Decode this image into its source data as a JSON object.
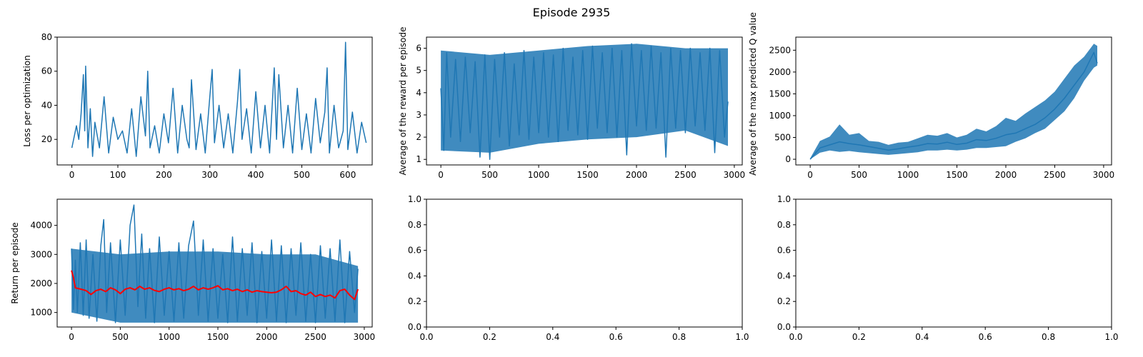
{
  "figure": {
    "title": "Episode 2935"
  },
  "colors": {
    "series": "#1f77b4",
    "smooth": "#ff0000",
    "axis": "#000000"
  },
  "chart_data": [
    {
      "id": "loss",
      "type": "line",
      "title": "",
      "xlabel": "",
      "ylabel": "Loss per optimization",
      "xlim": [
        -32,
        653
      ],
      "ylim": [
        5,
        80
      ],
      "xticks": [
        0,
        100,
        200,
        300,
        400,
        500,
        600
      ],
      "yticks": [
        20,
        40,
        60,
        80
      ],
      "series": [
        {
          "color": "#1f77b4",
          "x": [
            0,
            10,
            15,
            20,
            25,
            28,
            30,
            35,
            40,
            45,
            50,
            60,
            70,
            80,
            90,
            100,
            110,
            120,
            130,
            140,
            150,
            160,
            165,
            170,
            180,
            190,
            200,
            210,
            220,
            230,
            240,
            250,
            255,
            260,
            270,
            280,
            290,
            300,
            305,
            310,
            320,
            330,
            340,
            350,
            360,
            365,
            370,
            380,
            390,
            400,
            410,
            420,
            430,
            440,
            445,
            450,
            460,
            470,
            480,
            490,
            500,
            510,
            520,
            530,
            540,
            550,
            555,
            560,
            570,
            580,
            590,
            595,
            600,
            610,
            620,
            630,
            640
          ],
          "y": [
            15,
            28,
            20,
            35,
            58,
            25,
            63,
            15,
            38,
            10,
            30,
            15,
            45,
            12,
            33,
            20,
            25,
            12,
            38,
            10,
            45,
            22,
            60,
            15,
            28,
            12,
            35,
            18,
            50,
            12,
            40,
            20,
            15,
            55,
            14,
            35,
            12,
            45,
            61,
            18,
            40,
            15,
            35,
            12,
            42,
            61,
            20,
            38,
            12,
            48,
            15,
            40,
            12,
            62,
            20,
            58,
            15,
            40,
            12,
            50,
            14,
            35,
            12,
            44,
            18,
            36,
            62,
            12,
            40,
            15,
            25,
            77,
            14,
            36,
            12,
            30,
            18
          ]
        }
      ]
    },
    {
      "id": "reward",
      "type": "line",
      "title": "",
      "xlabel": "",
      "ylabel": "Average of the reward per episode",
      "xlim": [
        -147,
        3081
      ],
      "ylim": [
        0.75,
        6.5
      ],
      "xticks": [
        0,
        500,
        1000,
        1500,
        2000,
        2500,
        3000
      ],
      "yticks": [
        1,
        2,
        3,
        4,
        5,
        6
      ],
      "band": {
        "color": "#1f77b4",
        "x": [
          0,
          500,
          1000,
          1500,
          2000,
          2500,
          2935
        ],
        "upper": [
          5.9,
          5.7,
          5.9,
          6.1,
          6.2,
          6.0,
          6.0
        ],
        "lower": [
          1.4,
          1.3,
          1.7,
          1.9,
          2.0,
          2.3,
          1.6
        ]
      },
      "series": [
        {
          "color": "#1f77b4",
          "x": [
            0,
            30,
            60,
            100,
            150,
            200,
            250,
            300,
            350,
            400,
            450,
            500,
            550,
            600,
            650,
            700,
            750,
            800,
            850,
            900,
            950,
            1000,
            1050,
            1100,
            1150,
            1200,
            1250,
            1300,
            1350,
            1400,
            1450,
            1500,
            1550,
            1600,
            1650,
            1700,
            1750,
            1800,
            1850,
            1900,
            1950,
            2000,
            2050,
            2100,
            2150,
            2200,
            2250,
            2300,
            2350,
            2400,
            2450,
            2500,
            2550,
            2600,
            2650,
            2700,
            2750,
            2800,
            2850,
            2900,
            2935
          ],
          "y": [
            4.2,
            1.4,
            5.8,
            2.0,
            5.5,
            1.8,
            5.6,
            2.2,
            5.4,
            1.1,
            5.7,
            1.0,
            5.5,
            2.0,
            5.8,
            1.6,
            5.3,
            2.1,
            5.9,
            1.9,
            5.6,
            2.2,
            5.8,
            2.0,
            5.7,
            1.8,
            6.0,
            2.3,
            5.6,
            2.1,
            5.9,
            1.9,
            6.1,
            2.4,
            5.8,
            2.2,
            6.0,
            2.0,
            5.9,
            1.2,
            6.2,
            2.5,
            5.9,
            2.3,
            6.1,
            2.4,
            5.8,
            1.1,
            6.0,
            2.4,
            5.9,
            2.2,
            6.0,
            2.5,
            5.8,
            2.3,
            6.0,
            1.3,
            5.9,
            2.0,
            3.6
          ]
        }
      ]
    },
    {
      "id": "qvalue",
      "type": "line",
      "title": "",
      "xlabel": "",
      "ylabel": "Average of the max predicted Q value",
      "xlim": [
        -147,
        3081
      ],
      "ylim": [
        -130,
        2800
      ],
      "xticks": [
        0,
        500,
        1000,
        1500,
        2000,
        2500,
        3000
      ],
      "yticks": [
        0,
        500,
        1000,
        1500,
        2000,
        2500
      ],
      "band": {
        "color": "#1f77b4",
        "x": [
          0,
          100,
          200,
          300,
          400,
          500,
          600,
          700,
          800,
          900,
          1000,
          1100,
          1200,
          1300,
          1400,
          1500,
          1600,
          1700,
          1800,
          1900,
          2000,
          2100,
          2200,
          2300,
          2400,
          2500,
          2600,
          2700,
          2800,
          2900,
          2935
        ],
        "upper": [
          20,
          420,
          520,
          800,
          560,
          600,
          420,
          400,
          330,
          380,
          400,
          480,
          560,
          540,
          600,
          500,
          560,
          700,
          640,
          760,
          950,
          880,
          1050,
          1200,
          1350,
          1550,
          1850,
          2150,
          2350,
          2650,
          2600
        ],
        "lower": [
          0,
          150,
          200,
          170,
          190,
          160,
          140,
          120,
          100,
          120,
          140,
          160,
          200,
          200,
          220,
          200,
          220,
          260,
          260,
          280,
          300,
          400,
          480,
          600,
          700,
          900,
          1100,
          1400,
          1800,
          2100,
          2150
        ]
      },
      "series": [
        {
          "color": "#1f77b4",
          "x": [
            0,
            100,
            200,
            300,
            400,
            500,
            600,
            700,
            800,
            900,
            1000,
            1100,
            1200,
            1300,
            1400,
            1500,
            1600,
            1700,
            1800,
            1900,
            2000,
            2100,
            2200,
            2300,
            2400,
            2500,
            2600,
            2700,
            2800,
            2900,
            2935
          ],
          "y": [
            0,
            260,
            330,
            400,
            360,
            330,
            290,
            250,
            210,
            240,
            280,
            310,
            360,
            350,
            390,
            340,
            370,
            450,
            430,
            480,
            560,
            600,
            700,
            800,
            950,
            1150,
            1400,
            1700,
            2000,
            2450,
            2200
          ]
        }
      ]
    },
    {
      "id": "return",
      "type": "line",
      "title": "",
      "xlabel": "",
      "ylabel": "Return per episode",
      "xlim": [
        -147,
        3081
      ],
      "ylim": [
        500,
        4900
      ],
      "xticks": [
        0,
        500,
        1000,
        1500,
        2000,
        2500,
        3000
      ],
      "yticks": [
        1000,
        2000,
        3000,
        4000
      ],
      "band": {
        "color": "#1f77b4",
        "x": [
          0,
          500,
          1000,
          1500,
          2000,
          2500,
          2935
        ],
        "upper": [
          3200,
          3000,
          3100,
          3100,
          3000,
          3000,
          2600
        ],
        "lower": [
          1000,
          650,
          650,
          650,
          650,
          650,
          650
        ]
      },
      "series": [
        {
          "color": "#1f77b4",
          "x": [
            0,
            20,
            40,
            60,
            90,
            120,
            150,
            180,
            220,
            260,
            300,
            330,
            360,
            400,
            450,
            500,
            550,
            600,
            640,
            680,
            720,
            760,
            800,
            850,
            900,
            950,
            1000,
            1050,
            1100,
            1150,
            1200,
            1250,
            1300,
            1350,
            1400,
            1450,
            1500,
            1550,
            1600,
            1650,
            1700,
            1750,
            1800,
            1850,
            1900,
            1950,
            2000,
            2050,
            2100,
            2150,
            2200,
            2250,
            2300,
            2350,
            2400,
            2450,
            2500,
            2550,
            2600,
            2650,
            2700,
            2750,
            2800,
            2850,
            2900,
            2935
          ],
          "y": [
            3200,
            1100,
            2800,
            1000,
            3400,
            900,
            3500,
            800,
            3000,
            700,
            3300,
            4200,
            1000,
            3400,
            650,
            3500,
            900,
            4000,
            4700,
            1200,
            3700,
            800,
            3200,
            650,
            3600,
            900,
            3100,
            700,
            3400,
            800,
            3300,
            4150,
            900,
            3500,
            700,
            3200,
            800,
            3000,
            650,
            3600,
            700,
            3200,
            900,
            3400,
            650,
            3100,
            800,
            3500,
            700,
            3300,
            650,
            3200,
            900,
            3400,
            700,
            3000,
            650,
            3300,
            800,
            3200,
            700,
            3500,
            650,
            3100,
            1000,
            2500
          ]
        },
        {
          "color": "#ff0000",
          "x": [
            0,
            20,
            40,
            100,
            150,
            200,
            250,
            300,
            350,
            400,
            450,
            500,
            550,
            600,
            650,
            700,
            750,
            800,
            850,
            900,
            950,
            1000,
            1050,
            1100,
            1150,
            1200,
            1250,
            1300,
            1350,
            1400,
            1450,
            1500,
            1550,
            1600,
            1650,
            1700,
            1750,
            1800,
            1850,
            1900,
            1950,
            2000,
            2050,
            2100,
            2150,
            2200,
            2250,
            2300,
            2350,
            2400,
            2450,
            2500,
            2550,
            2600,
            2650,
            2700,
            2750,
            2800,
            2850,
            2900,
            2935
          ],
          "y": [
            2450,
            2200,
            1850,
            1800,
            1750,
            1620,
            1750,
            1800,
            1720,
            1850,
            1780,
            1650,
            1800,
            1850,
            1780,
            1900,
            1800,
            1850,
            1760,
            1720,
            1800,
            1850,
            1780,
            1820,
            1750,
            1800,
            1900,
            1780,
            1850,
            1800,
            1850,
            1920,
            1780,
            1820,
            1750,
            1800,
            1720,
            1780,
            1700,
            1750,
            1720,
            1700,
            1680,
            1700,
            1780,
            1900,
            1720,
            1750,
            1650,
            1600,
            1700,
            1550,
            1620,
            1550,
            1600,
            1500,
            1750,
            1800,
            1600,
            1450,
            1800
          ]
        }
      ]
    },
    {
      "id": "empty1",
      "type": "line",
      "title": "",
      "xlabel": "",
      "ylabel": "",
      "xlim": [
        0,
        1
      ],
      "ylim": [
        0,
        1
      ],
      "xticks": [
        "0.0",
        "0.2",
        "0.4",
        "0.6",
        "0.8",
        "1.0"
      ],
      "yticks": [
        "0.0",
        "0.2",
        "0.4",
        "0.6",
        "0.8",
        "1.0"
      ],
      "series": []
    },
    {
      "id": "empty2",
      "type": "line",
      "title": "",
      "xlabel": "",
      "ylabel": "",
      "xlim": [
        0,
        1
      ],
      "ylim": [
        0,
        1
      ],
      "xticks": [
        "0.0",
        "0.2",
        "0.4",
        "0.6",
        "0.8",
        "1.0"
      ],
      "yticks": [
        "0.0",
        "0.2",
        "0.4",
        "0.6",
        "0.8",
        "1.0"
      ],
      "series": []
    }
  ]
}
